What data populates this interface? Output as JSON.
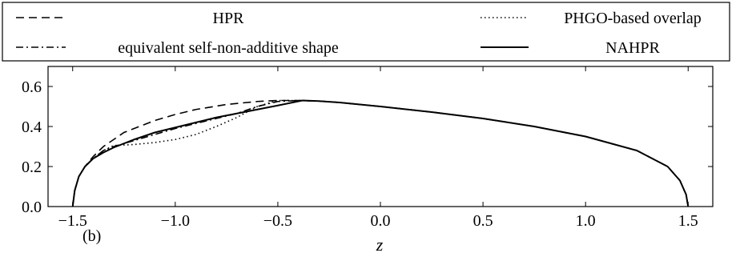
{
  "chart_data": {
    "type": "line",
    "title": "",
    "xlabel": "z",
    "ylabel": "",
    "panel_label": "(b)",
    "xlim": [
      -1.62,
      1.62
    ],
    "ylim": [
      0.0,
      0.7
    ],
    "xticks": [
      -1.5,
      -1.0,
      -0.5,
      0.0,
      0.5,
      1.0,
      1.5
    ],
    "xtick_labels": [
      "−1.5",
      "−1.0",
      "−0.5",
      "0.0",
      "0.5",
      "1.0",
      "1.5"
    ],
    "yticks": [
      0.0,
      0.2,
      0.4,
      0.6
    ],
    "ytick_labels": [
      "0.0",
      "0.2",
      "0.4",
      "0.6"
    ],
    "grid": false,
    "legend_position": "top",
    "series": [
      {
        "name": "HPR",
        "dash": "dashed",
        "x": [
          -1.5,
          -1.49,
          -1.47,
          -1.44,
          -1.4,
          -1.35,
          -1.25,
          -1.1,
          -1.0,
          -0.9,
          -0.75,
          -0.6,
          -0.5,
          -0.4,
          -0.3,
          -0.2,
          -0.1,
          0.0,
          0.25,
          0.5,
          0.75,
          1.0,
          1.25,
          1.4,
          1.46,
          1.49,
          1.5
        ],
        "y": [
          0.0,
          0.08,
          0.15,
          0.2,
          0.25,
          0.3,
          0.37,
          0.43,
          0.46,
          0.485,
          0.51,
          0.525,
          0.53,
          0.53,
          0.527,
          0.52,
          0.51,
          0.5,
          0.472,
          0.44,
          0.4,
          0.35,
          0.28,
          0.2,
          0.13,
          0.06,
          0.0
        ]
      },
      {
        "name": "PHGO-based overlap",
        "dash": "dotted",
        "x": [
          -1.5,
          -1.49,
          -1.47,
          -1.44,
          -1.4,
          -1.35,
          -1.3,
          -1.2,
          -1.1,
          -1.0,
          -0.9,
          -0.8,
          -0.7,
          -0.6,
          -0.5,
          -0.4,
          -0.3,
          -0.2,
          -0.1,
          0.0,
          0.25,
          0.5,
          0.75,
          1.0,
          1.25,
          1.4,
          1.46,
          1.49,
          1.5
        ],
        "y": [
          0.0,
          0.08,
          0.15,
          0.2,
          0.24,
          0.28,
          0.305,
          0.31,
          0.32,
          0.335,
          0.36,
          0.4,
          0.445,
          0.5,
          0.53,
          0.53,
          0.527,
          0.52,
          0.51,
          0.5,
          0.472,
          0.44,
          0.4,
          0.35,
          0.28,
          0.2,
          0.13,
          0.06,
          0.0
        ]
      },
      {
        "name": "equivalent self-non-additive shape",
        "dash": "dashdot",
        "x": [
          -1.5,
          -1.49,
          -1.47,
          -1.44,
          -1.4,
          -1.35,
          -1.3,
          -1.2,
          -1.1,
          -1.0,
          -0.9,
          -0.8,
          -0.7,
          -0.6,
          -0.5,
          -0.4,
          -0.3,
          -0.2,
          -0.1,
          0.0,
          0.25,
          0.5,
          0.75,
          1.0,
          1.25,
          1.4,
          1.46,
          1.49,
          1.5
        ],
        "y": [
          0.0,
          0.08,
          0.15,
          0.2,
          0.24,
          0.28,
          0.3,
          0.33,
          0.36,
          0.39,
          0.415,
          0.44,
          0.465,
          0.5,
          0.525,
          0.53,
          0.527,
          0.52,
          0.51,
          0.5,
          0.472,
          0.44,
          0.4,
          0.35,
          0.28,
          0.2,
          0.13,
          0.06,
          0.0
        ]
      },
      {
        "name": "NAHPR",
        "dash": "solid",
        "x": [
          -1.5,
          -1.49,
          -1.47,
          -1.44,
          -1.4,
          -1.35,
          -1.3,
          -1.2,
          -1.1,
          -1.0,
          -0.9,
          -0.8,
          -0.7,
          -0.6,
          -0.5,
          -0.38,
          -0.3,
          -0.2,
          -0.1,
          0.0,
          0.25,
          0.5,
          0.75,
          1.0,
          1.25,
          1.4,
          1.46,
          1.49,
          1.5
        ],
        "y": [
          0.0,
          0.08,
          0.15,
          0.2,
          0.24,
          0.27,
          0.295,
          0.335,
          0.37,
          0.395,
          0.42,
          0.445,
          0.465,
          0.485,
          0.505,
          0.53,
          0.527,
          0.52,
          0.51,
          0.5,
          0.472,
          0.44,
          0.4,
          0.35,
          0.28,
          0.2,
          0.13,
          0.06,
          0.0
        ]
      }
    ]
  }
}
